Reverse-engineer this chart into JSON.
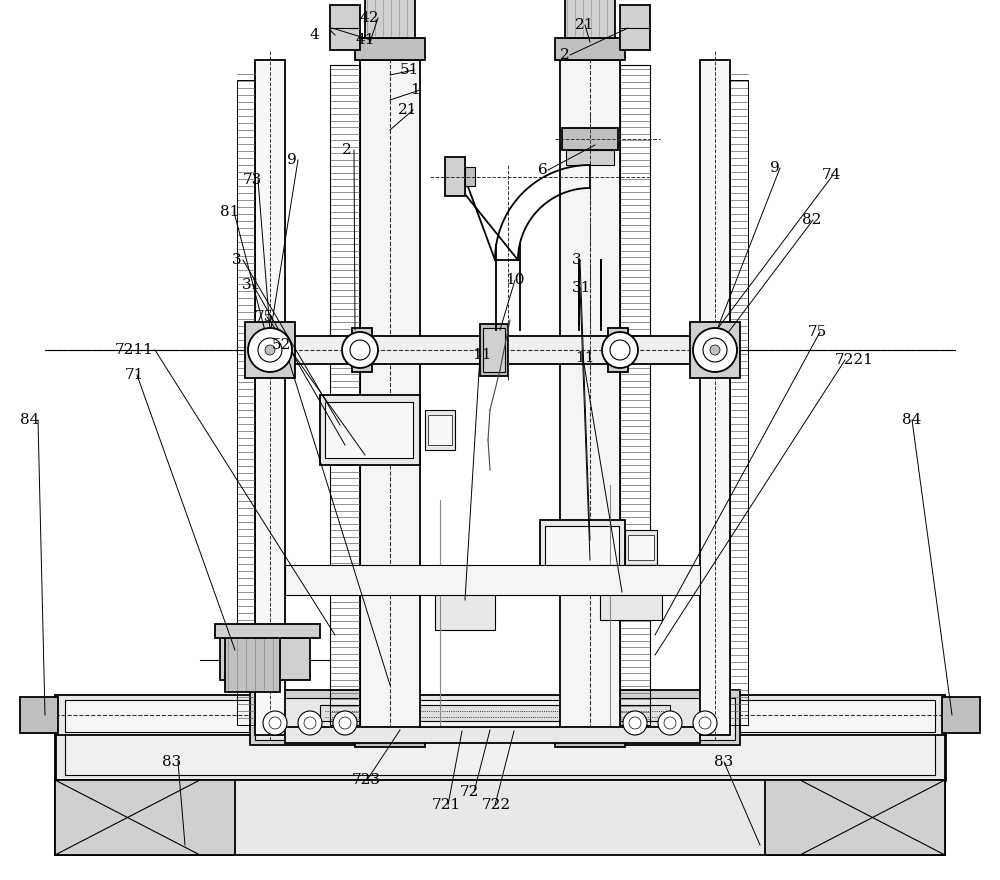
{
  "bg_color": "#ffffff",
  "lc": "#000000",
  "fig_w": 10.0,
  "fig_h": 8.8,
  "dpi": 100,
  "lw_thick": 2.0,
  "lw_med": 1.3,
  "lw_thin": 0.8,
  "lw_vt": 0.5,
  "gray1": "#e8e8e8",
  "gray2": "#d0d0d0",
  "gray3": "#c0c0c0",
  "gray4": "#aaaaaa",
  "chain_color": "#666666"
}
